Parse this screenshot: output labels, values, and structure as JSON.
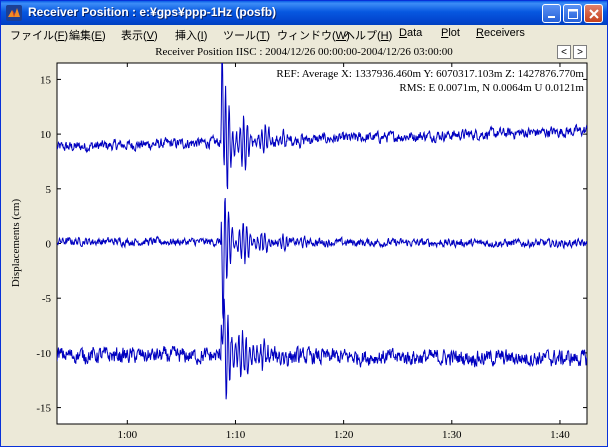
{
  "window": {
    "title": "Receiver Position : e:¥gps¥ppp-1Hz (posfb)",
    "icons": {
      "app": "matlab-icon",
      "minimize": "minimize-icon",
      "maximize": "maximize-icon",
      "close": "close-icon"
    }
  },
  "menu": [
    {
      "label": "ファイル(",
      "key": "F",
      "suffix": ")"
    },
    {
      "label": "編集(",
      "key": "E",
      "suffix": ")"
    },
    {
      "label": "表示(",
      "key": "V",
      "suffix": ")"
    },
    {
      "label": "挿入(",
      "key": "I",
      "suffix": ")"
    },
    {
      "label": "ツール(",
      "key": "T",
      "suffix": ")"
    },
    {
      "label": "ウィンドウ(",
      "key": "W",
      "suffix": ")"
    },
    {
      "label": "ヘルプ(",
      "key": "H",
      "suffix": ")"
    },
    {
      "label": "",
      "key": "D",
      "suffix": "ata"
    },
    {
      "label": "",
      "key": "P",
      "suffix": "lot"
    },
    {
      "label": "",
      "key": "R",
      "suffix": "eceivers"
    }
  ],
  "header": {
    "plot_title": "Receiver Position IISC  : 2004/12/26 00:00:00-2004/12/26 03:00:00",
    "prev_label": "<",
    "next_label": ">"
  },
  "chart_data": {
    "type": "line",
    "ylabel": "Displacements (cm)",
    "xlabel": "",
    "xlim": [
      "0:53:30",
      "1:42:30"
    ],
    "ylim": [
      -16.5,
      16.5
    ],
    "x_ticks": [
      "1:00",
      "1:10",
      "1:20",
      "1:30",
      "1:40"
    ],
    "y_ticks": [
      15,
      10,
      5,
      0,
      -5,
      -10,
      -15
    ],
    "grid": false,
    "line_color": "#0000c0",
    "annotations": [
      "REF: Average  X: 1337936.460m Y: 6070317.103m Z: 1427876.770m",
      "RMS: E 0.0071m, N 0.0064m U 0.0121m"
    ],
    "series": [
      {
        "offset": 10,
        "baseline_start": -1.2,
        "baseline_end": 0.3,
        "noise": 0.4
      },
      {
        "offset": 0,
        "baseline_start": 0.2,
        "baseline_end": 0.0,
        "noise": 0.3
      },
      {
        "offset": -10,
        "baseline_start": -0.2,
        "baseline_end": -0.5,
        "noise": 0.6
      }
    ]
  }
}
